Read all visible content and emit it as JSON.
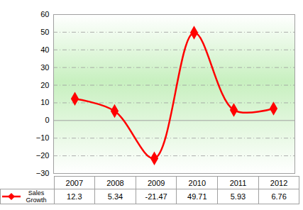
{
  "chart_data": {
    "type": "line",
    "categories": [
      "2007",
      "2008",
      "2009",
      "2010",
      "2011",
      "2012"
    ],
    "series": [
      {
        "name": "Sales Growth",
        "color": "#ff0000",
        "marker": "diamond",
        "values": [
          12.3,
          5.34,
          -21.47,
          49.71,
          5.93,
          6.76
        ]
      }
    ],
    "ylim": [
      -30,
      60
    ],
    "yticks": [
      -30,
      -20,
      -10,
      0,
      10,
      20,
      30,
      40,
      50,
      60
    ],
    "grid": true
  }
}
